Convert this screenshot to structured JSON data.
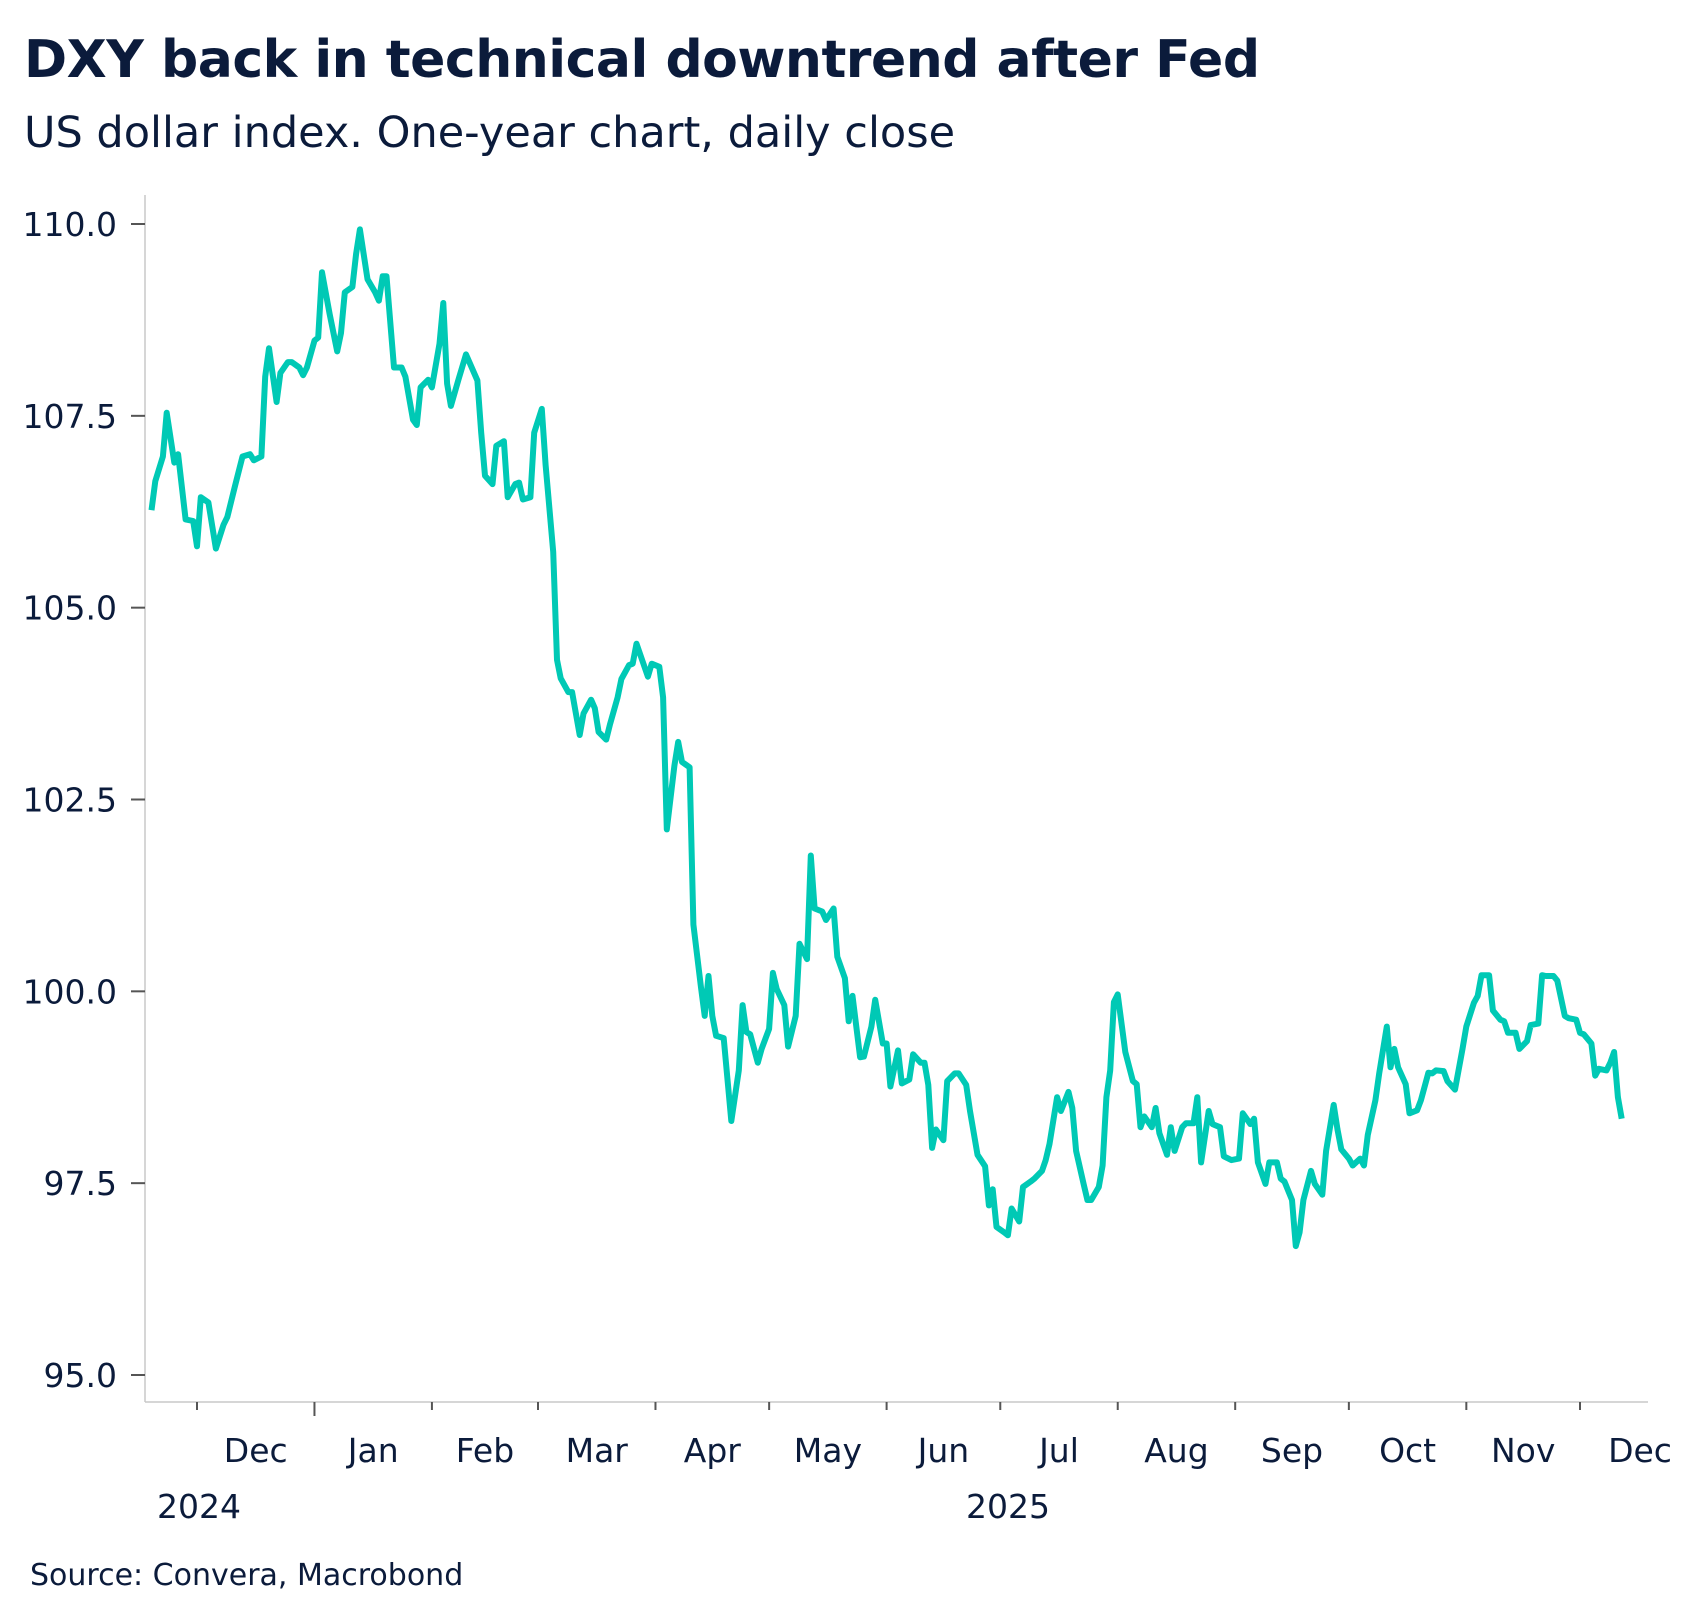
{
  "chart_data": {
    "type": "line",
    "title": "DXY back in technical downtrend after Fed",
    "subtitle": "US dollar index. One-year chart, daily close",
    "source": "Source: Convera, Macrobond",
    "xlabel": "",
    "ylabel": "",
    "ylim": [
      95,
      110
    ],
    "yticks": [
      "95.0",
      "97.5",
      "100.0",
      "102.5",
      "105.0",
      "107.5",
      "110.0"
    ],
    "xlim": [
      "2024-11-19",
      "2025-12-12"
    ],
    "month_labels": [
      "Dec",
      "Jan",
      "Feb",
      "Mar",
      "Apr",
      "May",
      "Jun",
      "Jul",
      "Aug",
      "Sep",
      "Oct",
      "Nov",
      "Dec"
    ],
    "year_labels": [
      "2024",
      "2025"
    ],
    "grid": false,
    "legend": "none",
    "line_color": "#00c9b5",
    "series": [
      {
        "points": [
          [
            "2024-11-19",
            106.27
          ],
          [
            "2024-11-20",
            106.65
          ],
          [
            "2024-11-22",
            106.97
          ],
          [
            "2024-11-23",
            107.54
          ],
          [
            "2024-11-25",
            106.89
          ],
          [
            "2024-11-26",
            107.0
          ],
          [
            "2024-11-28",
            106.15
          ],
          [
            "2024-11-30",
            106.13
          ],
          [
            "2024-12-01",
            105.8
          ],
          [
            "2024-12-02",
            106.44
          ],
          [
            "2024-12-04",
            106.37
          ],
          [
            "2024-12-06",
            105.77
          ],
          [
            "2024-12-08",
            106.08
          ],
          [
            "2024-12-09",
            106.18
          ],
          [
            "2024-12-11",
            106.58
          ],
          [
            "2024-12-13",
            106.97
          ],
          [
            "2024-12-15",
            107.0
          ],
          [
            "2024-12-16",
            106.92
          ],
          [
            "2024-12-18",
            106.97
          ],
          [
            "2024-12-19",
            108.01
          ],
          [
            "2024-12-20",
            108.38
          ],
          [
            "2024-12-22",
            107.68
          ],
          [
            "2024-12-23",
            108.06
          ],
          [
            "2024-12-25",
            108.2
          ],
          [
            "2024-12-26",
            108.2
          ],
          [
            "2024-12-28",
            108.13
          ],
          [
            "2024-12-29",
            108.03
          ],
          [
            "2024-12-30",
            108.13
          ],
          [
            "2025-01-01",
            108.48
          ],
          [
            "2025-01-02",
            108.52
          ],
          [
            "2025-01-03",
            109.37
          ],
          [
            "2025-01-05",
            108.83
          ],
          [
            "2025-01-07",
            108.34
          ],
          [
            "2025-01-08",
            108.58
          ],
          [
            "2025-01-09",
            109.11
          ],
          [
            "2025-01-11",
            109.18
          ],
          [
            "2025-01-12",
            109.61
          ],
          [
            "2025-01-13",
            109.93
          ],
          [
            "2025-01-15",
            109.28
          ],
          [
            "2025-01-17",
            109.11
          ],
          [
            "2025-01-18",
            109.0
          ],
          [
            "2025-01-19",
            109.32
          ],
          [
            "2025-01-20",
            109.32
          ],
          [
            "2025-01-22",
            108.13
          ],
          [
            "2025-01-24",
            108.13
          ],
          [
            "2025-01-25",
            108.01
          ],
          [
            "2025-01-27",
            107.45
          ],
          [
            "2025-01-28",
            107.38
          ],
          [
            "2025-01-29",
            107.87
          ],
          [
            "2025-01-31",
            107.97
          ],
          [
            "2025-02-01",
            107.87
          ],
          [
            "2025-02-03",
            108.44
          ],
          [
            "2025-02-04",
            108.97
          ],
          [
            "2025-02-05",
            107.92
          ],
          [
            "2025-02-06",
            107.63
          ],
          [
            "2025-02-08",
            107.97
          ],
          [
            "2025-02-10",
            108.3
          ],
          [
            "2025-02-13",
            107.96
          ],
          [
            "2025-02-14",
            107.28
          ],
          [
            "2025-02-15",
            106.72
          ],
          [
            "2025-02-17",
            106.61
          ],
          [
            "2025-02-18",
            107.11
          ],
          [
            "2025-02-20",
            107.17
          ],
          [
            "2025-02-21",
            106.44
          ],
          [
            "2025-02-23",
            106.61
          ],
          [
            "2025-02-24",
            106.63
          ],
          [
            "2025-02-25",
            106.41
          ],
          [
            "2025-02-27",
            106.44
          ],
          [
            "2025-02-28",
            107.28
          ],
          [
            "2025-03-02",
            107.59
          ],
          [
            "2025-03-03",
            106.86
          ],
          [
            "2025-03-05",
            105.73
          ],
          [
            "2025-03-06",
            104.32
          ],
          [
            "2025-03-07",
            104.08
          ],
          [
            "2025-03-09",
            103.9
          ],
          [
            "2025-03-10",
            103.9
          ],
          [
            "2025-03-12",
            103.34
          ],
          [
            "2025-03-13",
            103.62
          ],
          [
            "2025-03-15",
            103.8
          ],
          [
            "2025-03-16",
            103.69
          ],
          [
            "2025-03-17",
            103.38
          ],
          [
            "2025-03-19",
            103.28
          ],
          [
            "2025-03-20",
            103.48
          ],
          [
            "2025-03-22",
            103.83
          ],
          [
            "2025-03-23",
            104.07
          ],
          [
            "2025-03-25",
            104.25
          ],
          [
            "2025-03-26",
            104.27
          ],
          [
            "2025-03-27",
            104.53
          ],
          [
            "2025-03-30",
            104.1
          ],
          [
            "2025-03-31",
            104.27
          ],
          [
            "2025-04-02",
            104.23
          ],
          [
            "2025-04-03",
            103.83
          ],
          [
            "2025-04-04",
            102.11
          ],
          [
            "2025-04-06",
            102.94
          ],
          [
            "2025-04-07",
            103.25
          ],
          [
            "2025-04-08",
            102.99
          ],
          [
            "2025-04-10",
            102.92
          ],
          [
            "2025-04-11",
            100.87
          ],
          [
            "2025-04-13",
            100.06
          ],
          [
            "2025-04-14",
            99.68
          ],
          [
            "2025-04-15",
            100.2
          ],
          [
            "2025-04-16",
            99.68
          ],
          [
            "2025-04-17",
            99.42
          ],
          [
            "2025-04-19",
            99.39
          ],
          [
            "2025-04-21",
            98.31
          ],
          [
            "2025-04-23",
            98.97
          ],
          [
            "2025-04-24",
            99.82
          ],
          [
            "2025-04-25",
            99.47
          ],
          [
            "2025-04-26",
            99.44
          ],
          [
            "2025-04-28",
            99.07
          ],
          [
            "2025-04-29",
            99.25
          ],
          [
            "2025-05-01",
            99.51
          ],
          [
            "2025-05-02",
            100.24
          ],
          [
            "2025-05-03",
            100.03
          ],
          [
            "2025-05-05",
            99.82
          ],
          [
            "2025-05-06",
            99.28
          ],
          [
            "2025-05-08",
            99.68
          ],
          [
            "2025-05-09",
            100.62
          ],
          [
            "2025-05-11",
            100.42
          ],
          [
            "2025-05-12",
            101.77
          ],
          [
            "2025-05-13",
            101.08
          ],
          [
            "2025-05-15",
            101.04
          ],
          [
            "2025-05-16",
            100.93
          ],
          [
            "2025-05-18",
            101.08
          ],
          [
            "2025-05-19",
            100.45
          ],
          [
            "2025-05-21",
            100.17
          ],
          [
            "2025-05-22",
            99.61
          ],
          [
            "2025-05-23",
            99.94
          ],
          [
            "2025-05-25",
            99.14
          ],
          [
            "2025-05-26",
            99.15
          ],
          [
            "2025-05-28",
            99.54
          ],
          [
            "2025-05-29",
            99.89
          ],
          [
            "2025-05-31",
            99.32
          ],
          [
            "2025-06-01",
            99.32
          ],
          [
            "2025-06-02",
            98.76
          ],
          [
            "2025-06-04",
            99.23
          ],
          [
            "2025-06-05",
            98.8
          ],
          [
            "2025-06-07",
            98.85
          ],
          [
            "2025-06-08",
            99.18
          ],
          [
            "2025-06-10",
            99.07
          ],
          [
            "2025-06-11",
            99.07
          ],
          [
            "2025-06-12",
            98.78
          ],
          [
            "2025-06-13",
            97.96
          ],
          [
            "2025-06-14",
            98.2
          ],
          [
            "2025-06-16",
            98.06
          ],
          [
            "2025-06-17",
            98.83
          ],
          [
            "2025-06-19",
            98.93
          ],
          [
            "2025-06-20",
            98.93
          ],
          [
            "2025-06-22",
            98.78
          ],
          [
            "2025-06-23",
            98.44
          ],
          [
            "2025-06-25",
            97.87
          ],
          [
            "2025-06-27",
            97.72
          ],
          [
            "2025-06-28",
            97.21
          ],
          [
            "2025-06-29",
            97.42
          ],
          [
            "2025-06-30",
            96.93
          ],
          [
            "2025-07-02",
            96.86
          ],
          [
            "2025-07-03",
            96.82
          ],
          [
            "2025-07-04",
            97.17
          ],
          [
            "2025-07-06",
            97.0
          ],
          [
            "2025-07-07",
            97.45
          ],
          [
            "2025-07-09",
            97.52
          ],
          [
            "2025-07-10",
            97.56
          ],
          [
            "2025-07-12",
            97.66
          ],
          [
            "2025-07-13",
            97.8
          ],
          [
            "2025-07-14",
            98.01
          ],
          [
            "2025-07-16",
            98.62
          ],
          [
            "2025-07-17",
            98.44
          ],
          [
            "2025-07-19",
            98.69
          ],
          [
            "2025-07-20",
            98.48
          ],
          [
            "2025-07-21",
            97.92
          ],
          [
            "2025-07-23",
            97.49
          ],
          [
            "2025-07-24",
            97.28
          ],
          [
            "2025-07-25",
            97.28
          ],
          [
            "2025-07-27",
            97.45
          ],
          [
            "2025-07-28",
            97.73
          ],
          [
            "2025-07-29",
            98.62
          ],
          [
            "2025-07-30",
            98.97
          ],
          [
            "2025-07-31",
            99.86
          ],
          [
            "2025-08-01",
            99.96
          ],
          [
            "2025-08-03",
            99.21
          ],
          [
            "2025-08-05",
            98.83
          ],
          [
            "2025-08-06",
            98.79
          ],
          [
            "2025-08-07",
            98.23
          ],
          [
            "2025-08-08",
            98.37
          ],
          [
            "2025-08-10",
            98.23
          ],
          [
            "2025-08-11",
            98.48
          ],
          [
            "2025-08-12",
            98.15
          ],
          [
            "2025-08-14",
            97.87
          ],
          [
            "2025-08-15",
            98.23
          ],
          [
            "2025-08-16",
            97.92
          ],
          [
            "2025-08-18",
            98.23
          ],
          [
            "2025-08-19",
            98.28
          ],
          [
            "2025-08-21",
            98.28
          ],
          [
            "2025-08-22",
            98.62
          ],
          [
            "2025-08-23",
            97.77
          ],
          [
            "2025-08-25",
            98.44
          ],
          [
            "2025-08-26",
            98.27
          ],
          [
            "2025-08-28",
            98.23
          ],
          [
            "2025-08-29",
            97.85
          ],
          [
            "2025-08-31",
            97.8
          ],
          [
            "2025-09-02",
            97.82
          ],
          [
            "2025-09-03",
            98.41
          ],
          [
            "2025-09-05",
            98.27
          ],
          [
            "2025-09-06",
            98.34
          ],
          [
            "2025-09-07",
            97.77
          ],
          [
            "2025-09-09",
            97.49
          ],
          [
            "2025-09-10",
            97.77
          ],
          [
            "2025-09-12",
            97.77
          ],
          [
            "2025-09-13",
            97.56
          ],
          [
            "2025-09-14",
            97.52
          ],
          [
            "2025-09-16",
            97.28
          ],
          [
            "2025-09-17",
            96.68
          ],
          [
            "2025-09-18",
            96.86
          ],
          [
            "2025-09-19",
            97.28
          ],
          [
            "2025-09-21",
            97.66
          ],
          [
            "2025-09-22",
            97.49
          ],
          [
            "2025-09-24",
            97.35
          ],
          [
            "2025-09-25",
            97.92
          ],
          [
            "2025-09-27",
            98.52
          ],
          [
            "2025-09-28",
            98.2
          ],
          [
            "2025-09-29",
            97.94
          ],
          [
            "2025-10-01",
            97.82
          ],
          [
            "2025-10-02",
            97.73
          ],
          [
            "2025-10-04",
            97.82
          ],
          [
            "2025-10-05",
            97.73
          ],
          [
            "2025-10-06",
            98.13
          ],
          [
            "2025-10-08",
            98.58
          ],
          [
            "2025-10-09",
            98.93
          ],
          [
            "2025-10-11",
            99.54
          ],
          [
            "2025-10-12",
            99.01
          ],
          [
            "2025-10-13",
            99.25
          ],
          [
            "2025-10-14",
            99.01
          ],
          [
            "2025-10-16",
            98.79
          ],
          [
            "2025-10-17",
            98.41
          ],
          [
            "2025-10-19",
            98.45
          ],
          [
            "2025-10-20",
            98.58
          ],
          [
            "2025-10-22",
            98.94
          ],
          [
            "2025-10-23",
            98.93
          ],
          [
            "2025-10-24",
            98.97
          ],
          [
            "2025-10-26",
            98.96
          ],
          [
            "2025-10-27",
            98.83
          ],
          [
            "2025-10-29",
            98.72
          ],
          [
            "2025-10-31",
            99.25
          ],
          [
            "2025-11-01",
            99.54
          ],
          [
            "2025-11-03",
            99.85
          ],
          [
            "2025-11-04",
            99.94
          ],
          [
            "2025-11-05",
            100.21
          ],
          [
            "2025-11-07",
            100.21
          ],
          [
            "2025-11-08",
            99.75
          ],
          [
            "2025-11-10",
            99.63
          ],
          [
            "2025-11-11",
            99.61
          ],
          [
            "2025-11-12",
            99.46
          ],
          [
            "2025-11-14",
            99.46
          ],
          [
            "2025-11-15",
            99.25
          ],
          [
            "2025-11-17",
            99.35
          ],
          [
            "2025-11-18",
            99.56
          ],
          [
            "2025-11-20",
            99.58
          ],
          [
            "2025-11-21",
            100.21
          ],
          [
            "2025-11-22",
            100.2
          ],
          [
            "2025-11-24",
            100.2
          ],
          [
            "2025-11-25",
            100.14
          ],
          [
            "2025-11-27",
            99.68
          ],
          [
            "2025-11-28",
            99.65
          ],
          [
            "2025-11-30",
            99.63
          ],
          [
            "2025-12-01",
            99.46
          ],
          [
            "2025-12-02",
            99.44
          ],
          [
            "2025-12-04",
            99.32
          ],
          [
            "2025-12-05",
            98.9
          ],
          [
            "2025-12-06",
            98.99
          ],
          [
            "2025-12-08",
            98.97
          ],
          [
            "2025-12-09",
            99.07
          ],
          [
            "2025-12-10",
            99.21
          ],
          [
            "2025-12-11",
            98.62
          ],
          [
            "2025-12-12",
            98.34
          ]
        ]
      }
    ]
  }
}
